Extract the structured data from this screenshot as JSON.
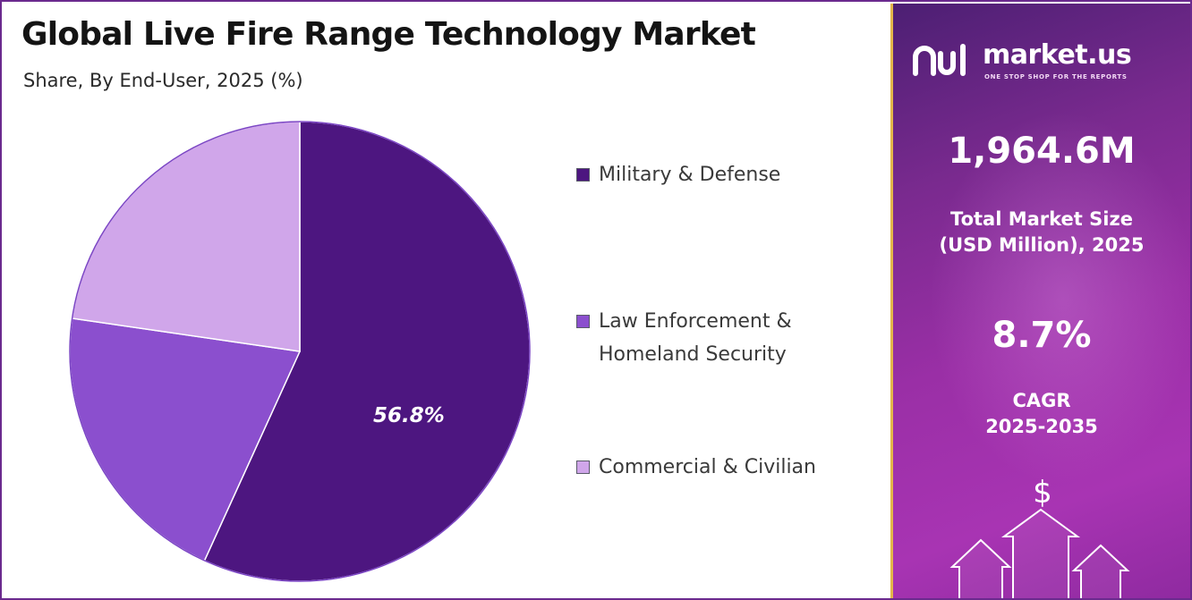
{
  "header": {
    "title": "Global Live Fire Range Technology Market",
    "subtitle": "Share, By End-User, 2025 (%)"
  },
  "chart_data": {
    "type": "pie",
    "title": "Global Live Fire Range Technology Market",
    "subtitle": "Share, By End-User, 2025 (%)",
    "categories": [
      "Military & Defense",
      "Law Enforcement & Homeland Security",
      "Commercial & Civilian"
    ],
    "values": [
      56.8,
      20.5,
      22.7
    ],
    "colors": [
      "#4d1680",
      "#8b4fce",
      "#d0a6ea"
    ],
    "data_labels": [
      "56.8%",
      "",
      ""
    ],
    "start_angle_deg": 0,
    "direction": "clockwise",
    "legend_position": "right"
  },
  "legend": {
    "items": [
      {
        "label_lines": [
          "Military & Defense"
        ],
        "color": "#4d1680"
      },
      {
        "label_lines": [
          "Law Enforcement &",
          "Homeland Security"
        ],
        "color": "#8b4fce"
      },
      {
        "label_lines": [
          "Commercial & Civilian"
        ],
        "color": "#d0a6ea"
      }
    ]
  },
  "side_panel": {
    "brand_name": "market.us",
    "brand_tagline": "ONE STOP SHOP FOR THE REPORTS",
    "market_size_value": "1,964.6M",
    "market_size_label_line1": "Total Market Size",
    "market_size_label_line2": "(USD Million), 2025",
    "cagr_value": "8.7%",
    "cagr_label_line1": "CAGR",
    "cagr_label_line2": "2025-2035",
    "currency_symbol": "$",
    "accent_color": "#e3b64a"
  }
}
